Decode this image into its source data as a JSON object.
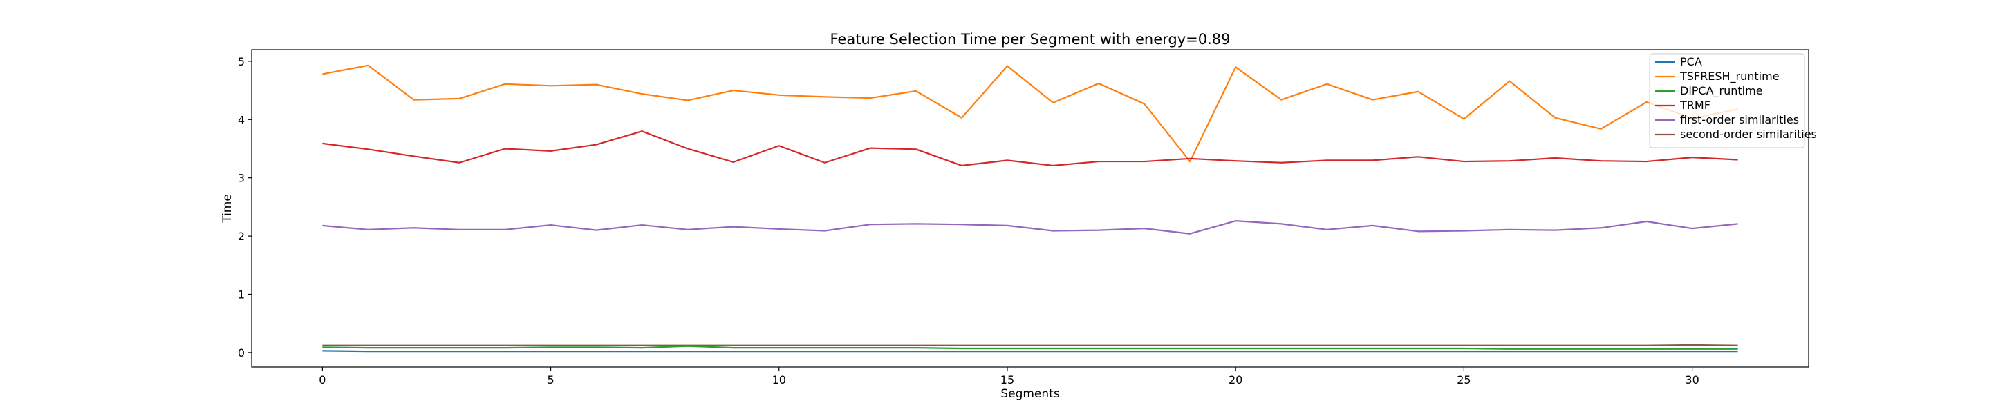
{
  "chart_data": {
    "type": "line",
    "title": "Feature Selection Time per Segment with energy=0.89",
    "xlabel": "Segments",
    "ylabel": "Time",
    "xlim": [
      -1.55,
      32.55
    ],
    "ylim": [
      -0.25,
      5.2
    ],
    "xticks": [
      0,
      5,
      10,
      15,
      20,
      25,
      30
    ],
    "yticks": [
      0,
      1,
      2,
      3,
      4,
      5
    ],
    "grid": false,
    "legend": "top-right",
    "x": [
      0,
      1,
      2,
      3,
      4,
      5,
      6,
      7,
      8,
      9,
      10,
      11,
      12,
      13,
      14,
      15,
      16,
      17,
      18,
      19,
      20,
      21,
      22,
      23,
      24,
      25,
      26,
      27,
      28,
      29,
      30,
      31
    ],
    "series": [
      {
        "name": "PCA",
        "color": "#1f77b4",
        "values": [
          0.03,
          0.02,
          0.02,
          0.02,
          0.02,
          0.02,
          0.02,
          0.02,
          0.02,
          0.02,
          0.02,
          0.02,
          0.02,
          0.02,
          0.02,
          0.02,
          0.02,
          0.02,
          0.02,
          0.02,
          0.02,
          0.02,
          0.02,
          0.02,
          0.02,
          0.02,
          0.02,
          0.02,
          0.02,
          0.02,
          0.02,
          0.02
        ]
      },
      {
        "name": "TSFRESH_runtime",
        "color": "#ff7f0e",
        "values": [
          4.78,
          4.93,
          4.34,
          4.36,
          4.61,
          4.58,
          4.6,
          4.44,
          4.33,
          4.5,
          4.42,
          4.39,
          4.37,
          4.49,
          4.03,
          4.92,
          4.29,
          4.62,
          4.27,
          3.28,
          4.9,
          4.34,
          4.61,
          4.34,
          4.48,
          4.01,
          4.66,
          4.03,
          3.84,
          4.3,
          4.02,
          4.18
        ]
      },
      {
        "name": "DiPCA_runtime",
        "color": "#2ca02c",
        "values": [
          0.09,
          0.08,
          0.08,
          0.08,
          0.08,
          0.09,
          0.09,
          0.08,
          0.11,
          0.08,
          0.08,
          0.08,
          0.08,
          0.08,
          0.07,
          0.07,
          0.07,
          0.07,
          0.07,
          0.07,
          0.07,
          0.07,
          0.07,
          0.07,
          0.07,
          0.07,
          0.06,
          0.06,
          0.06,
          0.06,
          0.06,
          0.06
        ]
      },
      {
        "name": "TRMF",
        "color": "#d62728",
        "values": [
          3.59,
          3.49,
          3.37,
          3.26,
          3.5,
          3.46,
          3.57,
          3.8,
          3.5,
          3.27,
          3.55,
          3.26,
          3.51,
          3.49,
          3.21,
          3.3,
          3.21,
          3.28,
          3.28,
          3.33,
          3.29,
          3.26,
          3.3,
          3.3,
          3.36,
          3.28,
          3.29,
          3.34,
          3.29,
          3.28,
          3.35,
          3.31
        ]
      },
      {
        "name": "first-order similarities",
        "color": "#9467bd",
        "values": [
          2.18,
          2.11,
          2.14,
          2.11,
          2.11,
          2.19,
          2.1,
          2.19,
          2.11,
          2.16,
          2.12,
          2.09,
          2.2,
          2.21,
          2.2,
          2.18,
          2.09,
          2.1,
          2.13,
          2.04,
          2.26,
          2.21,
          2.11,
          2.18,
          2.08,
          2.09,
          2.11,
          2.1,
          2.14,
          2.25,
          2.13,
          2.21
        ]
      },
      {
        "name": "second-order similarities",
        "color": "#8c564b",
        "values": [
          0.12,
          0.12,
          0.12,
          0.12,
          0.12,
          0.12,
          0.12,
          0.12,
          0.12,
          0.12,
          0.12,
          0.12,
          0.12,
          0.12,
          0.12,
          0.12,
          0.12,
          0.12,
          0.12,
          0.12,
          0.12,
          0.12,
          0.12,
          0.12,
          0.12,
          0.12,
          0.12,
          0.12,
          0.12,
          0.12,
          0.13,
          0.12
        ]
      }
    ]
  }
}
